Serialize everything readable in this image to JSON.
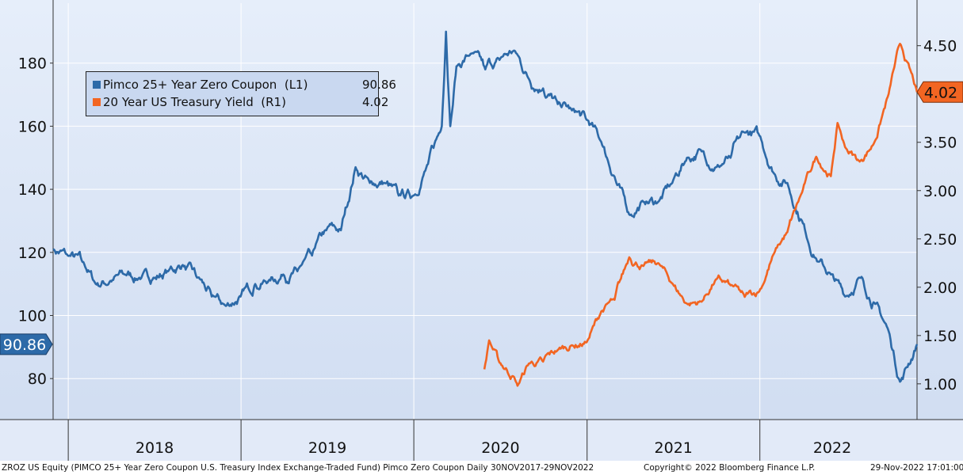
{
  "chart_data": {
    "type": "line",
    "series": [
      {
        "name": "Pimco 25+ Year Zero Coupon",
        "axis_tag": "(L1)",
        "last_value": "90.86",
        "color": "#2d6aa8",
        "axis": "left",
        "points": [
          [
            "2017-11-30",
            121
          ],
          [
            "2017-12-31",
            119
          ],
          [
            "2018-01-31",
            117
          ],
          [
            "2018-02-28",
            110
          ],
          [
            "2018-03-31",
            111
          ],
          [
            "2018-04-30",
            113
          ],
          [
            "2018-05-31",
            112
          ],
          [
            "2018-06-30",
            112
          ],
          [
            "2018-07-31",
            114
          ],
          [
            "2018-08-31",
            116
          ],
          [
            "2018-09-30",
            112
          ],
          [
            "2018-10-31",
            106
          ],
          [
            "2018-11-30",
            103
          ],
          [
            "2018-12-31",
            106
          ],
          [
            "2019-01-31",
            110
          ],
          [
            "2019-02-28",
            111
          ],
          [
            "2019-03-31",
            113
          ],
          [
            "2019-04-30",
            114
          ],
          [
            "2019-05-31",
            119
          ],
          [
            "2019-06-30",
            127
          ],
          [
            "2019-07-31",
            127
          ],
          [
            "2019-08-31",
            147
          ],
          [
            "2019-09-30",
            142
          ],
          [
            "2019-10-31",
            142
          ],
          [
            "2019-11-30",
            138
          ],
          [
            "2019-12-31",
            138
          ],
          [
            "2020-01-31",
            148
          ],
          [
            "2020-02-29",
            160
          ],
          [
            "2020-03-09",
            190
          ],
          [
            "2020-03-18",
            160
          ],
          [
            "2020-03-31",
            179
          ],
          [
            "2020-04-30",
            183
          ],
          [
            "2020-05-31",
            178
          ],
          [
            "2020-06-30",
            181
          ],
          [
            "2020-07-31",
            184
          ],
          [
            "2020-08-31",
            175
          ],
          [
            "2020-09-30",
            172
          ],
          [
            "2020-10-31",
            167
          ],
          [
            "2020-11-30",
            165
          ],
          [
            "2020-12-31",
            162
          ],
          [
            "2021-01-31",
            155
          ],
          [
            "2021-02-28",
            144
          ],
          [
            "2021-03-31",
            132
          ],
          [
            "2021-04-30",
            136
          ],
          [
            "2021-05-31",
            136
          ],
          [
            "2021-06-30",
            142
          ],
          [
            "2021-07-31",
            150
          ],
          [
            "2021-08-31",
            152
          ],
          [
            "2021-09-30",
            147
          ],
          [
            "2021-10-31",
            150
          ],
          [
            "2021-11-30",
            158
          ],
          [
            "2021-12-31",
            157
          ],
          [
            "2022-01-31",
            145
          ],
          [
            "2022-02-28",
            142
          ],
          [
            "2022-03-31",
            130
          ],
          [
            "2022-04-30",
            118
          ],
          [
            "2022-05-31",
            113
          ],
          [
            "2022-06-30",
            106
          ],
          [
            "2022-07-31",
            112
          ],
          [
            "2022-08-31",
            104
          ],
          [
            "2022-09-30",
            95
          ],
          [
            "2022-10-24",
            79
          ],
          [
            "2022-11-29",
            90.86
          ]
        ]
      },
      {
        "name": "20 Year US Treasury Yield",
        "axis_tag": "(R1)",
        "last_value": "4.02",
        "color": "#f26522",
        "axis": "right",
        "points": [
          [
            "2020-05-29",
            1.15
          ],
          [
            "2020-06-08",
            1.45
          ],
          [
            "2020-06-30",
            1.22
          ],
          [
            "2020-07-31",
            1.07
          ],
          [
            "2020-08-07",
            0.98
          ],
          [
            "2020-08-31",
            1.21
          ],
          [
            "2020-09-30",
            1.23
          ],
          [
            "2020-10-31",
            1.35
          ],
          [
            "2020-11-30",
            1.4
          ],
          [
            "2020-12-31",
            1.43
          ],
          [
            "2021-01-31",
            1.75
          ],
          [
            "2021-02-28",
            1.87
          ],
          [
            "2021-03-31",
            2.31
          ],
          [
            "2021-04-30",
            2.22
          ],
          [
            "2021-05-31",
            2.25
          ],
          [
            "2021-06-30",
            2.04
          ],
          [
            "2021-07-31",
            1.83
          ],
          [
            "2021-08-31",
            1.85
          ],
          [
            "2021-09-30",
            2.08
          ],
          [
            "2021-10-31",
            2.02
          ],
          [
            "2021-11-30",
            1.9
          ],
          [
            "2021-12-31",
            1.96
          ],
          [
            "2022-01-31",
            2.35
          ],
          [
            "2022-02-28",
            2.57
          ],
          [
            "2022-03-31",
            2.98
          ],
          [
            "2022-04-30",
            3.35
          ],
          [
            "2022-05-31",
            3.15
          ],
          [
            "2022-06-14",
            3.7
          ],
          [
            "2022-06-30",
            3.45
          ],
          [
            "2022-07-31",
            3.3
          ],
          [
            "2022-08-31",
            3.5
          ],
          [
            "2022-09-30",
            4.0
          ],
          [
            "2022-10-24",
            4.52
          ],
          [
            "2022-11-29",
            4.02
          ]
        ]
      }
    ],
    "left_axis": {
      "ticks": [
        "80",
        "100",
        "120",
        "140",
        "160",
        "180"
      ],
      "range": [
        67,
        199
      ]
    },
    "right_axis": {
      "ticks": [
        "1.00",
        "1.50",
        "2.00",
        "2.50",
        "3.00",
        "3.50",
        "4.50"
      ],
      "range": [
        0.63,
        4.94
      ]
    },
    "x_axis": {
      "labels": [
        "2018",
        "2019",
        "2020",
        "2021",
        "2022"
      ],
      "range": [
        "2017-11-30",
        "2022-11-29"
      ]
    },
    "last_value_tags": {
      "left": "90.86",
      "right": "4.02"
    },
    "grid": true,
    "legend_position": "top-left"
  },
  "footer": {
    "left": "ZROZ US Equity (PIMCO 25+ Year Zero Coupon U.S. Treasury Index Exchange-Traded Fund) Pimco Zero Coupon  Daily 30NOV2017-29NOV2022",
    "center": "Copyright© 2022 Bloomberg Finance L.P.",
    "right": "29-Nov-2022 17:01:00"
  },
  "colors": {
    "background": "#dce7f7",
    "blue_series": "#2d6aa8",
    "orange_series": "#f26522"
  }
}
